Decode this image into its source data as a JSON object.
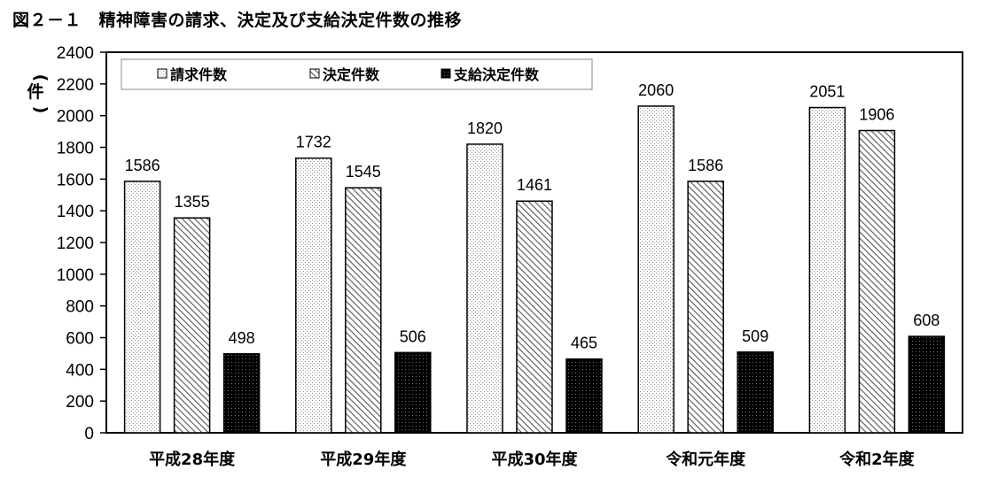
{
  "title": "図２－１　精神障害の請求、決定及び支給決定件数の推移",
  "chart_data": {
    "type": "bar",
    "ylabel": "件",
    "ylim": [
      0,
      2400
    ],
    "ytick_step": 200,
    "legend_position": "top-left",
    "categories": [
      "平成28年度",
      "平成29年度",
      "平成30年度",
      "令和元年度",
      "令和2年度"
    ],
    "series": [
      {
        "name": "請求件数",
        "pattern": "dots",
        "values": [
          1586,
          1732,
          1820,
          2060,
          2051
        ]
      },
      {
        "name": "決定件数",
        "pattern": "diagonal",
        "values": [
          1355,
          1545,
          1461,
          1586,
          1906
        ]
      },
      {
        "name": "支給決定件数",
        "pattern": "black",
        "values": [
          498,
          506,
          465,
          509,
          608
        ]
      }
    ]
  }
}
